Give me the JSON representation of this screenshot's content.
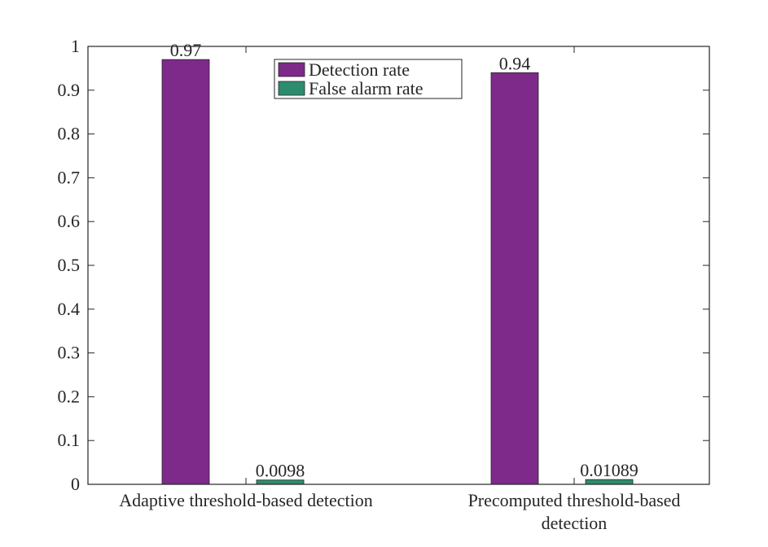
{
  "chart_data": {
    "type": "bar",
    "categories": [
      [
        "Adaptive threshold-based detection"
      ],
      [
        "Precomputed threshold-based",
        "detection"
      ]
    ],
    "series": [
      {
        "name": "Detection rate",
        "values": [
          0.97,
          0.94
        ],
        "labels": [
          "0.97",
          "0.94"
        ],
        "color": "#7E2A8A"
      },
      {
        "name": "False alarm rate",
        "values": [
          0.0098,
          0.01089
        ],
        "labels": [
          "0.0098",
          "0.01089"
        ],
        "color": "#2E8C6E"
      }
    ],
    "ylim": [
      0,
      1
    ],
    "yticks": [
      0,
      0.1,
      0.2,
      0.3,
      0.4,
      0.5,
      0.6,
      0.7,
      0.8,
      0.9,
      1
    ],
    "ytick_labels": [
      "0",
      "0.1",
      "0.2",
      "0.3",
      "0.4",
      "0.5",
      "0.6",
      "0.7",
      "0.8",
      "0.9",
      "1"
    ],
    "grid": false,
    "legend_position": "top-center",
    "title": "",
    "xlabel": "",
    "ylabel": ""
  }
}
